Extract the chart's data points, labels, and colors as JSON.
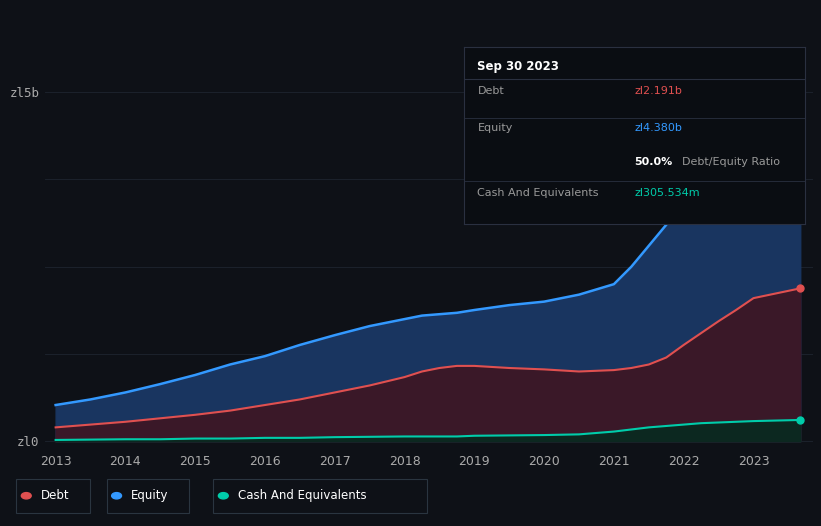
{
  "bg_color": "#0e1117",
  "grid_color": "#1e2530",
  "years": [
    2013,
    2013.5,
    2014,
    2014.5,
    2015,
    2015.5,
    2016,
    2016.5,
    2017,
    2017.5,
    2018,
    2018.25,
    2018.5,
    2018.75,
    2019,
    2019.5,
    2020,
    2020.5,
    2021,
    2021.25,
    2021.5,
    2021.75,
    2022,
    2022.25,
    2022.5,
    2022.75,
    2023,
    2023.67
  ],
  "equity": [
    0.52,
    0.6,
    0.7,
    0.82,
    0.95,
    1.1,
    1.22,
    1.38,
    1.52,
    1.65,
    1.75,
    1.8,
    1.82,
    1.84,
    1.88,
    1.95,
    2.0,
    2.1,
    2.25,
    2.5,
    2.8,
    3.1,
    3.4,
    3.65,
    3.88,
    4.1,
    4.3,
    4.38
  ],
  "debt": [
    0.2,
    0.24,
    0.28,
    0.33,
    0.38,
    0.44,
    0.52,
    0.6,
    0.7,
    0.8,
    0.92,
    1.0,
    1.05,
    1.08,
    1.08,
    1.05,
    1.03,
    1.0,
    1.02,
    1.05,
    1.1,
    1.2,
    1.38,
    1.55,
    1.72,
    1.88,
    2.05,
    2.19
  ],
  "cash": [
    0.02,
    0.025,
    0.03,
    0.03,
    0.04,
    0.04,
    0.05,
    0.05,
    0.06,
    0.065,
    0.07,
    0.07,
    0.07,
    0.07,
    0.08,
    0.085,
    0.09,
    0.1,
    0.14,
    0.17,
    0.2,
    0.22,
    0.24,
    0.26,
    0.27,
    0.28,
    0.29,
    0.306
  ],
  "equity_color": "#3399ff",
  "debt_color": "#e05050",
  "cash_color": "#00ccaa",
  "equity_fill": "#193560",
  "debt_fill": "#3a1828",
  "cash_fill": "#0c2820",
  "ylim_max": 5.0,
  "ylim_min": -0.12,
  "ytick_positions": [
    0.0,
    5.0
  ],
  "ytick_labels": [
    "zl0",
    "zl5b"
  ],
  "xtick_labels": [
    "2013",
    "2014",
    "2015",
    "2016",
    "2017",
    "2018",
    "2019",
    "2020",
    "2021",
    "2022",
    "2023"
  ],
  "xtick_positions": [
    2013,
    2014,
    2015,
    2016,
    2017,
    2018,
    2019,
    2020,
    2021,
    2022,
    2023
  ],
  "tooltip_title": "Sep 30 2023",
  "tooltip_debt_label": "Debt",
  "tooltip_debt_val": "zl2.191b",
  "tooltip_equity_label": "Equity",
  "tooltip_equity_val": "zl4.380b",
  "tooltip_ratio": "50.0%",
  "tooltip_ratio_label": "Debt/Equity Ratio",
  "tooltip_cash_label": "Cash And Equivalents",
  "tooltip_cash_val": "zl305.534m",
  "legend_items": [
    {
      "label": "Debt",
      "color": "#e05050"
    },
    {
      "label": "Equity",
      "color": "#3399ff"
    },
    {
      "label": "Cash And Equivalents",
      "color": "#00ccaa"
    }
  ]
}
